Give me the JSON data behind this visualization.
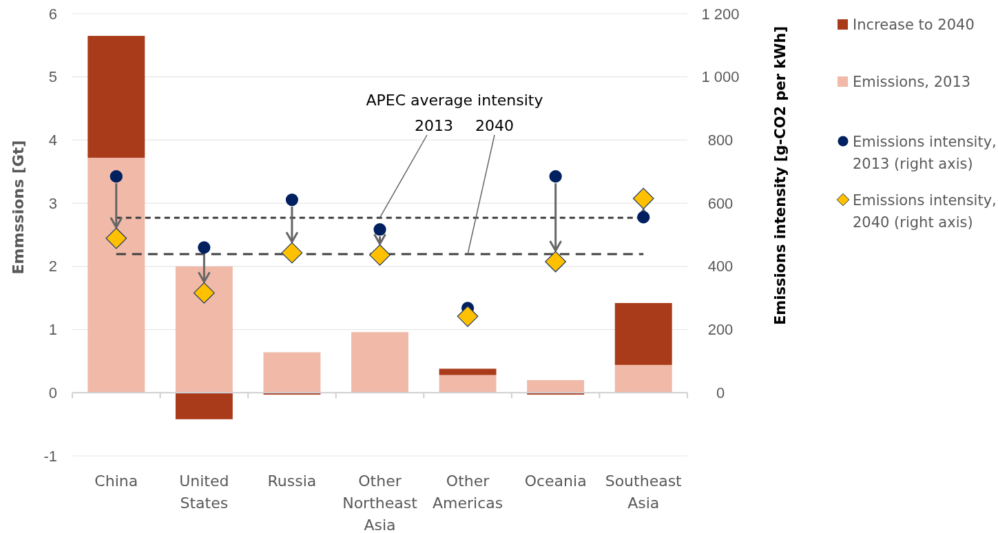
{
  "chart_data": {
    "type": "bar",
    "stacked": true,
    "categories": [
      "China",
      "United States",
      "Russia",
      "Other Northeast Asia",
      "Other Americas",
      "Oceania",
      "Southeast Asia"
    ],
    "series": [
      {
        "name": "Emissions, 2013",
        "color": "#f0b9a8",
        "values": [
          3.72,
          2.0,
          0.64,
          0.96,
          0.28,
          0.2,
          0.44
        ]
      },
      {
        "name": "Increase to 2040",
        "color": "#a93a1a",
        "values": [
          1.93,
          -0.42,
          -0.03,
          null,
          0.1,
          -0.03,
          0.98
        ]
      },
      {
        "name": "Emissions intensity, 2013 (right axis)",
        "type": "scatter",
        "axis": "y2",
        "marker": "circle",
        "color": "#002060",
        "values": [
          685,
          460,
          611,
          517,
          268,
          685,
          556
        ]
      },
      {
        "name": "Emissions intensity, 2040 (right axis)",
        "type": "scatter",
        "axis": "y2",
        "marker": "diamond",
        "color": "#ffc000",
        "values": [
          489,
          316,
          443,
          436,
          242,
          415,
          615
        ]
      }
    ],
    "ylabel": "Emmssions [Gt]",
    "y2label": "Emissions intensity [g-CO2 per kWh]",
    "ylim": [
      -1,
      6
    ],
    "yticks": [
      -1,
      0,
      1,
      2,
      3,
      4,
      5,
      6
    ],
    "y2lim": [
      -200,
      1200
    ],
    "y2ticks": [
      0,
      200,
      400,
      600,
      800,
      {
        "value": 1000,
        "label": "1 000"
      },
      {
        "value": 1200,
        "label": "1 200"
      }
    ],
    "ref_lines": [
      {
        "axis": "y2",
        "value": 554,
        "line_style": "dashed",
        "color": "#404040"
      },
      {
        "axis": "y2",
        "value": 439,
        "line_style": "dashed",
        "color": "#404040"
      }
    ],
    "annotations": [
      "APEC average intensity",
      {
        "text": "2013",
        "x": "Other Northeast Asia",
        "y": 2.77
      },
      {
        "text": "2040",
        "x": "Other Americas",
        "y": 2.195
      }
    ],
    "grid": "y",
    "legend": "right"
  }
}
